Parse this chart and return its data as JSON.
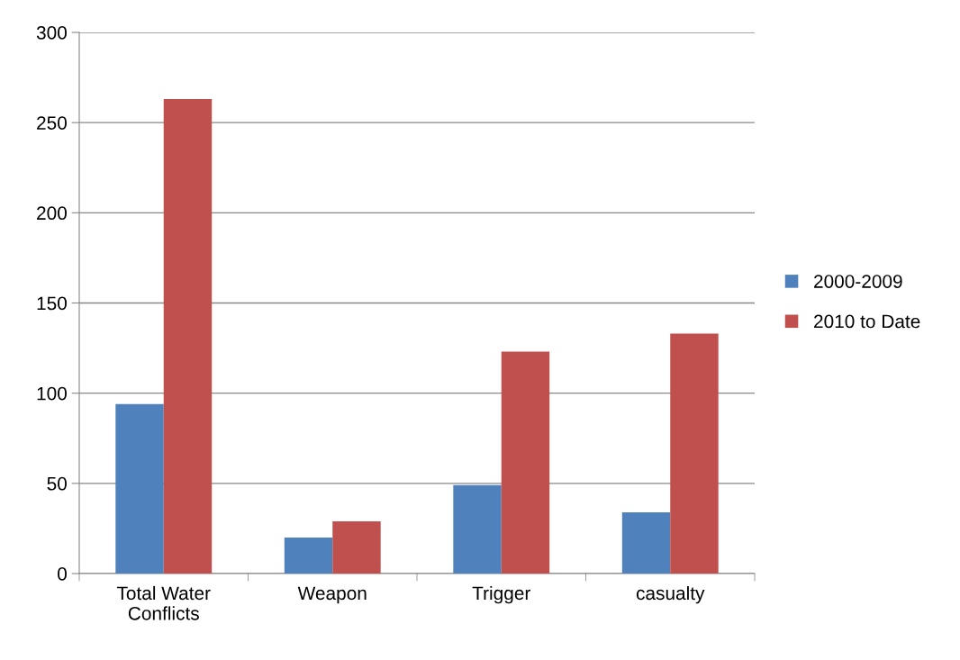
{
  "chart_data": {
    "type": "bar",
    "categories": [
      "Total Water\nConflicts",
      "Weapon",
      "Trigger",
      "casualty"
    ],
    "series": [
      {
        "name": "2000-2009",
        "color": "#4f81bd",
        "values": [
          94,
          20,
          49,
          34
        ]
      },
      {
        "name": "2010 to Date",
        "color": "#c0504d",
        "values": [
          263,
          29,
          123,
          133
        ]
      }
    ],
    "ylim": [
      0,
      300
    ],
    "yticks": [
      0,
      50,
      100,
      150,
      200,
      250,
      300
    ],
    "grid": "y",
    "legend": "right"
  }
}
